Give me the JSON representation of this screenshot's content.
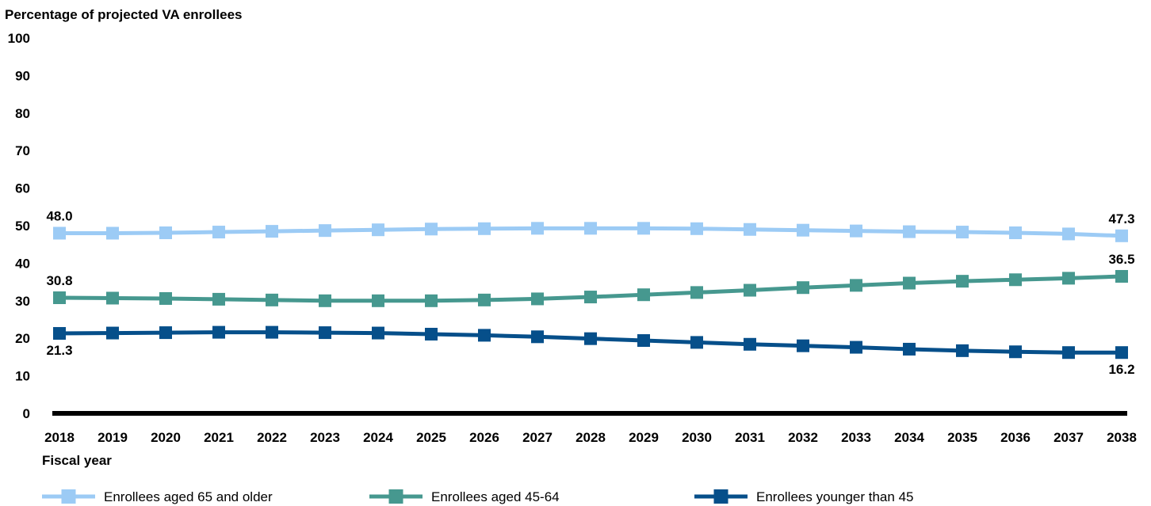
{
  "chart_data": {
    "type": "line",
    "ylabel": "Percentage of projected VA enrollees",
    "xlabel": "Fiscal year",
    "ylim": [
      0,
      100
    ],
    "yticks": [
      0,
      10,
      20,
      30,
      40,
      50,
      60,
      70,
      80,
      90,
      100
    ],
    "grid": false,
    "legend_position": "bottom",
    "x": [
      "2018",
      "2019",
      "2020",
      "2021",
      "2022",
      "2023",
      "2024",
      "2025",
      "2026",
      "2027",
      "2028",
      "2029",
      "2030",
      "2031",
      "2032",
      "2033",
      "2034",
      "2035",
      "2036",
      "2037",
      "2038"
    ],
    "series": [
      {
        "name": "Enrollees aged 65 and older",
        "color": "#9ccbf5",
        "values": [
          48.0,
          48.0,
          48.1,
          48.3,
          48.5,
          48.7,
          48.9,
          49.1,
          49.2,
          49.3,
          49.3,
          49.3,
          49.2,
          49.0,
          48.8,
          48.6,
          48.4,
          48.3,
          48.1,
          47.8,
          47.3
        ],
        "start_label": "48.0",
        "end_label": "47.3"
      },
      {
        "name": "Enrollees aged 45-64",
        "color": "#46988f",
        "values": [
          30.8,
          30.7,
          30.6,
          30.4,
          30.2,
          30.0,
          30.0,
          30.0,
          30.2,
          30.5,
          31.0,
          31.6,
          32.2,
          32.8,
          33.5,
          34.1,
          34.7,
          35.2,
          35.6,
          36.0,
          36.5
        ],
        "start_label": "30.8",
        "end_label": "36.5"
      },
      {
        "name": "Enrollees younger than 45",
        "color": "#064f8a",
        "values": [
          21.3,
          21.4,
          21.5,
          21.6,
          21.6,
          21.5,
          21.4,
          21.1,
          20.8,
          20.4,
          19.9,
          19.4,
          18.9,
          18.4,
          18.0,
          17.6,
          17.1,
          16.7,
          16.4,
          16.2,
          16.2
        ],
        "start_label": "21.3",
        "end_label": "16.2"
      }
    ]
  }
}
